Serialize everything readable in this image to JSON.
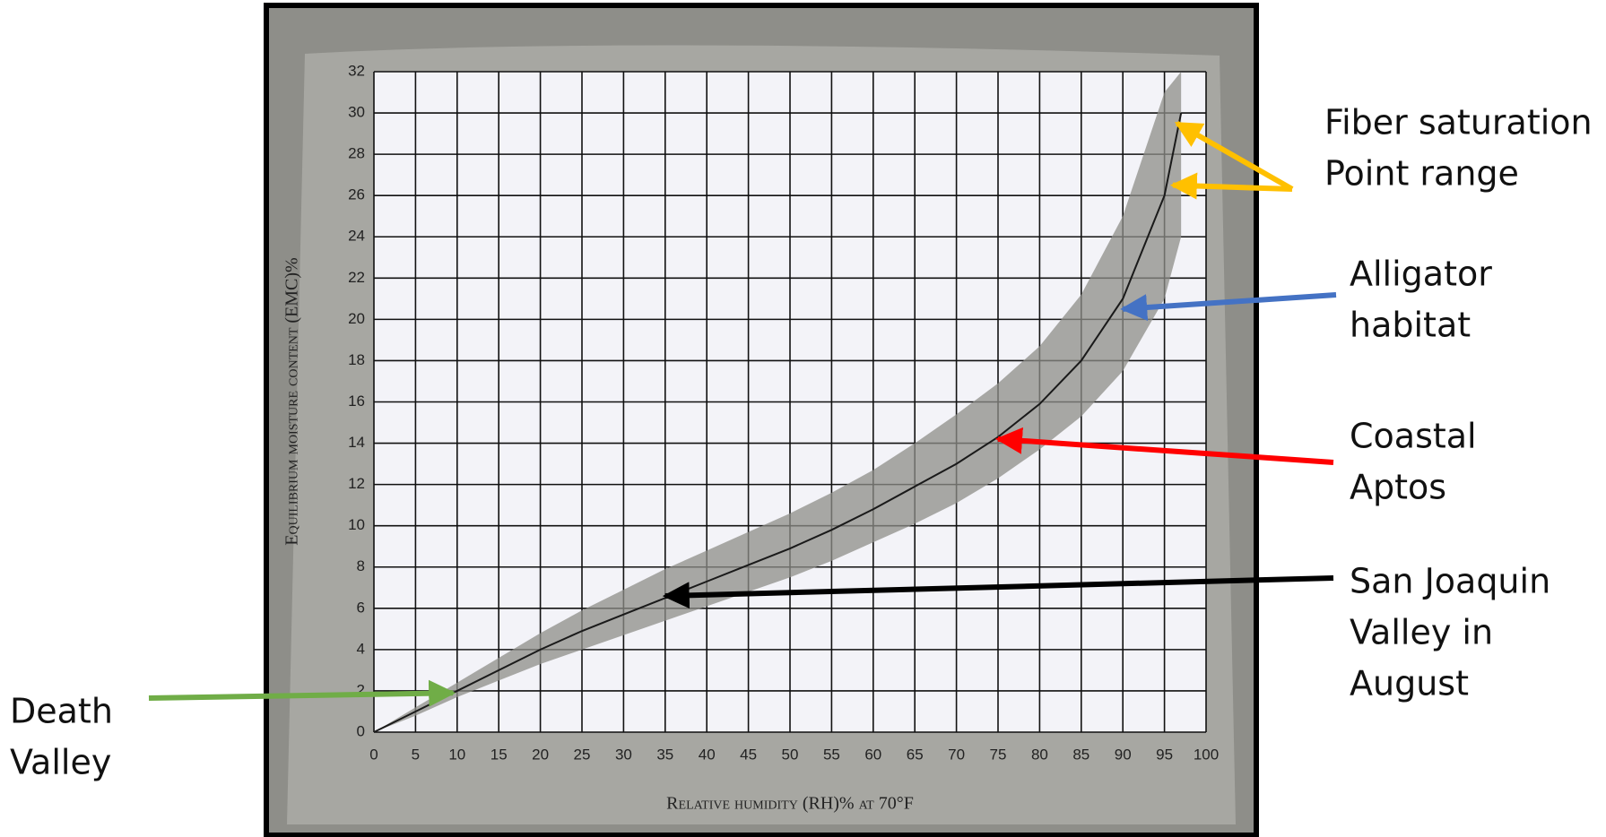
{
  "chart_data": {
    "type": "line",
    "xlabel": "Relative humidity (RH)% at 70°F",
    "ylabel": "Equilibrium moisture content (EMC)%",
    "x": [
      0,
      5,
      10,
      15,
      20,
      25,
      30,
      35,
      40,
      45,
      50,
      55,
      60,
      65,
      70,
      75,
      80,
      85,
      90,
      95,
      97
    ],
    "values": [
      0,
      1,
      2,
      3,
      4,
      4.9,
      5.7,
      6.5,
      7.3,
      8.1,
      8.9,
      9.8,
      10.8,
      11.9,
      13,
      14.3,
      15.9,
      18,
      21,
      26,
      30
    ],
    "band_lower": [
      0,
      0.8,
      1.7,
      2.5,
      3.3,
      4,
      4.7,
      5.4,
      6.1,
      6.8,
      7.5,
      8.3,
      9.2,
      10.1,
      11.1,
      12.3,
      13.7,
      15.3,
      17.5,
      21,
      24
    ],
    "band_upper": [
      0,
      1.2,
      2.4,
      3.6,
      4.8,
      5.9,
      6.9,
      7.9,
      8.8,
      9.7,
      10.6,
      11.6,
      12.7,
      14,
      15.4,
      16.9,
      18.7,
      21.2,
      25,
      31,
      32
    ],
    "color": "#1a1a1a",
    "band_color": "#8d8d88",
    "xlim": [
      0,
      100
    ],
    "xticks": [
      0,
      5,
      10,
      15,
      20,
      25,
      30,
      35,
      40,
      45,
      50,
      55,
      60,
      65,
      70,
      75,
      80,
      85,
      90,
      95,
      100
    ],
    "ylim": [
      0,
      32
    ],
    "yticks": [
      0,
      2,
      4,
      6,
      8,
      10,
      12,
      14,
      16,
      18,
      20,
      22,
      24,
      26,
      28,
      30,
      32
    ],
    "grid": true,
    "annotations": [
      {
        "text": [
          "Fiber saturation",
          "Point range"
        ],
        "color": "#ffc000",
        "points": [
          [
            96.5,
            29.5
          ],
          [
            96,
            26.5
          ]
        ]
      },
      {
        "text": [
          "Alligator",
          "habitat"
        ],
        "color": "#4472c4",
        "points": [
          [
            90,
            20.5
          ]
        ]
      },
      {
        "text": [
          "Coastal",
          "Aptos"
        ],
        "color": "#ff0000",
        "points": [
          [
            75,
            14.2
          ]
        ]
      },
      {
        "text": [
          "San Joaquin",
          "Valley in",
          "August"
        ],
        "color": "#000000",
        "points": [
          [
            35,
            6.6
          ]
        ]
      },
      {
        "text": [
          "Death",
          "Valley"
        ],
        "color": "#70ad47",
        "points": [
          [
            9.5,
            1.9
          ]
        ]
      }
    ]
  }
}
